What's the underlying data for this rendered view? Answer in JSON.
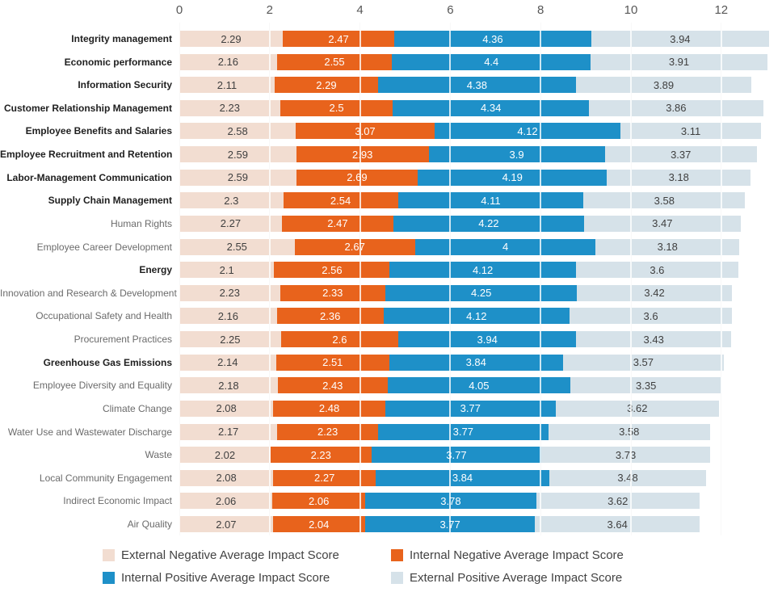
{
  "chart_data": {
    "type": "bar",
    "orientation": "horizontal",
    "stacked": true,
    "title": "",
    "xlabel": "",
    "ylabel": "",
    "x_ticks": [
      0,
      2,
      4,
      6,
      8,
      10,
      12
    ],
    "x_range": [
      0,
      13.3
    ],
    "grid": true,
    "legend_position": "bottom",
    "series": [
      {
        "key": "external-negative",
        "name": "External Negative Average Impact Score",
        "color": "#f2ddd1",
        "text_color": "#3f3f3f"
      },
      {
        "key": "internal-negative",
        "name": "Internal Negative Average Impact Score",
        "color": "#e8631c",
        "text_color": "#ffffff"
      },
      {
        "key": "internal-positive",
        "name": "Internal Positive Average Impact Score",
        "color": "#1e90c8",
        "text_color": "#ffffff"
      },
      {
        "key": "external-positive",
        "name": "External Positive Average Impact Score",
        "color": "#d6e2e9",
        "text_color": "#3f3f3f"
      }
    ],
    "categories": [
      {
        "label": "Integrity management",
        "bold": true,
        "values": [
          2.29,
          2.47,
          4.36,
          3.94
        ]
      },
      {
        "label": "Economic performance",
        "bold": true,
        "values": [
          2.16,
          2.55,
          4.4,
          3.91
        ]
      },
      {
        "label": "Information Security",
        "bold": true,
        "values": [
          2.11,
          2.29,
          4.38,
          3.89
        ]
      },
      {
        "label": "Customer Relationship Management",
        "bold": true,
        "values": [
          2.23,
          2.5,
          4.34,
          3.86
        ]
      },
      {
        "label": "Employee Benefits and Salaries",
        "bold": true,
        "values": [
          2.58,
          3.07,
          4.12,
          3.11
        ]
      },
      {
        "label": "Employee Recruitment and Retention",
        "bold": true,
        "values": [
          2.59,
          2.93,
          3.9,
          3.37
        ]
      },
      {
        "label": "Labor-Management Communication",
        "bold": true,
        "values": [
          2.59,
          2.69,
          4.19,
          3.18
        ]
      },
      {
        "label": "Supply Chain Management",
        "bold": true,
        "values": [
          2.3,
          2.54,
          4.11,
          3.58
        ]
      },
      {
        "label": "Human Rights",
        "bold": false,
        "values": [
          2.27,
          2.47,
          4.22,
          3.47
        ]
      },
      {
        "label": "Employee Career Development",
        "bold": false,
        "values": [
          2.55,
          2.67,
          4,
          3.18
        ]
      },
      {
        "label": "Energy",
        "bold": true,
        "values": [
          2.1,
          2.56,
          4.12,
          3.6
        ]
      },
      {
        "label": "Innovation and Research & Development",
        "bold": false,
        "values": [
          2.23,
          2.33,
          4.25,
          3.42
        ]
      },
      {
        "label": "Occupational Safety and Health",
        "bold": false,
        "values": [
          2.16,
          2.36,
          4.12,
          3.6
        ]
      },
      {
        "label": "Procurement Practices",
        "bold": false,
        "values": [
          2.25,
          2.6,
          3.94,
          3.43
        ]
      },
      {
        "label": "Greenhouse Gas Emissions",
        "bold": true,
        "values": [
          2.14,
          2.51,
          3.84,
          3.57
        ]
      },
      {
        "label": "Employee Diversity and Equality",
        "bold": false,
        "values": [
          2.18,
          2.43,
          4.05,
          3.35
        ]
      },
      {
        "label": "Climate Change",
        "bold": false,
        "values": [
          2.08,
          2.48,
          3.77,
          3.62
        ]
      },
      {
        "label": "Water Use and Wastewater Discharge",
        "bold": false,
        "values": [
          2.17,
          2.23,
          3.77,
          3.58
        ]
      },
      {
        "label": "Waste",
        "bold": false,
        "values": [
          2.02,
          2.23,
          3.77,
          3.73
        ]
      },
      {
        "label": "Local Community Engagement",
        "bold": false,
        "values": [
          2.08,
          2.27,
          3.84,
          3.48
        ]
      },
      {
        "label": "Indirect Economic Impact",
        "bold": false,
        "values": [
          2.06,
          2.06,
          3.78,
          3.62
        ]
      },
      {
        "label": "Air Quality",
        "bold": false,
        "values": [
          2.07,
          2.04,
          3.77,
          3.64
        ]
      }
    ]
  }
}
